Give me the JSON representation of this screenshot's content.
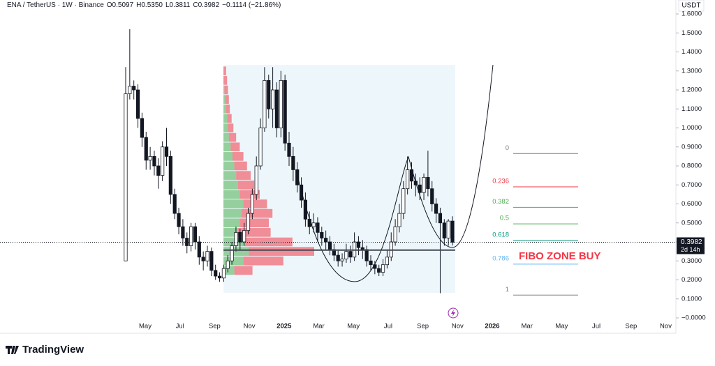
{
  "chart_data": {
    "type": "candlestick",
    "header": "ENA / TetherUS · 1W · Binance",
    "ohlc_text": [
      "O0.5097",
      "H0.5350",
      "L0.3811",
      "C0.3982",
      "−0.1114 (−21.86%)"
    ],
    "currency": "USDT",
    "last_price_label": "0.3982",
    "countdown": "2d 14h",
    "last_price": 0.3982,
    "open": [
      0.3,
      1.18,
      1.22,
      1.2,
      1.05,
      0.95,
      0.83,
      0.85,
      0.8,
      0.75,
      0.9,
      0.85,
      0.65,
      0.55,
      0.48,
      0.42,
      0.38,
      0.48,
      0.4,
      0.32,
      0.3,
      0.35,
      0.25,
      0.22,
      0.21,
      0.26,
      0.3,
      0.38,
      0.45,
      0.4,
      0.46,
      0.55,
      0.65,
      0.8,
      1.0,
      1.25,
      1.1,
      1.2,
      1.0,
      1.25,
      0.92,
      0.85,
      0.78,
      0.7,
      0.62,
      0.52,
      0.48,
      0.5,
      0.45,
      0.42,
      0.4,
      0.36,
      0.33,
      0.3,
      0.31,
      0.35,
      0.32,
      0.4,
      0.37,
      0.36,
      0.3,
      0.28,
      0.26,
      0.24,
      0.28,
      0.32,
      0.4,
      0.48,
      0.55,
      0.68,
      0.78,
      0.72,
      0.7,
      0.66,
      0.74,
      0.68,
      0.6,
      0.55,
      0.5,
      0.42,
      0.5097
    ],
    "high": [
      1.32,
      1.52,
      1.25,
      1.23,
      1.08,
      0.98,
      0.9,
      0.88,
      0.84,
      0.93,
      1.0,
      0.88,
      0.68,
      0.58,
      0.52,
      0.45,
      0.5,
      0.5,
      0.43,
      0.35,
      0.38,
      0.37,
      0.28,
      0.24,
      0.28,
      0.33,
      0.4,
      0.48,
      0.47,
      0.5,
      0.58,
      0.68,
      0.85,
      1.05,
      1.32,
      1.28,
      1.32,
      1.24,
      1.3,
      1.28,
      0.98,
      0.9,
      0.82,
      0.74,
      0.66,
      0.56,
      0.55,
      0.53,
      0.48,
      0.46,
      0.43,
      0.39,
      0.36,
      0.34,
      0.39,
      0.38,
      0.45,
      0.43,
      0.41,
      0.38,
      0.33,
      0.3,
      0.28,
      0.31,
      0.36,
      0.45,
      0.52,
      0.6,
      0.72,
      0.85,
      0.82,
      0.76,
      0.74,
      0.76,
      0.88,
      0.72,
      0.63,
      0.58,
      0.52,
      0.52,
      0.535
    ],
    "low": [
      0.3,
      1.15,
      1.15,
      1.0,
      0.9,
      0.78,
      0.78,
      0.75,
      0.68,
      0.72,
      0.8,
      0.6,
      0.52,
      0.44,
      0.38,
      0.34,
      0.35,
      0.36,
      0.28,
      0.25,
      0.27,
      0.22,
      0.2,
      0.19,
      0.19,
      0.24,
      0.28,
      0.35,
      0.36,
      0.38,
      0.44,
      0.52,
      0.62,
      0.78,
      0.98,
      1.05,
      1.0,
      0.95,
      0.95,
      0.88,
      0.8,
      0.72,
      0.66,
      0.58,
      0.48,
      0.44,
      0.45,
      0.4,
      0.38,
      0.36,
      0.33,
      0.3,
      0.27,
      0.27,
      0.29,
      0.29,
      0.3,
      0.33,
      0.31,
      0.27,
      0.25,
      0.23,
      0.22,
      0.22,
      0.26,
      0.3,
      0.38,
      0.45,
      0.52,
      0.65,
      0.68,
      0.64,
      0.62,
      0.62,
      0.64,
      0.56,
      0.5,
      0.13,
      0.38,
      0.38,
      0.3811
    ],
    "close": [
      1.18,
      1.22,
      1.2,
      1.05,
      0.95,
      0.83,
      0.85,
      0.8,
      0.75,
      0.9,
      0.85,
      0.65,
      0.55,
      0.48,
      0.42,
      0.38,
      0.48,
      0.4,
      0.32,
      0.3,
      0.35,
      0.25,
      0.22,
      0.21,
      0.26,
      0.3,
      0.38,
      0.45,
      0.4,
      0.46,
      0.55,
      0.65,
      0.8,
      1.0,
      1.25,
      1.1,
      1.2,
      1.0,
      1.25,
      0.92,
      0.85,
      0.78,
      0.7,
      0.62,
      0.52,
      0.48,
      0.5,
      0.45,
      0.42,
      0.4,
      0.36,
      0.33,
      0.3,
      0.31,
      0.35,
      0.32,
      0.4,
      0.37,
      0.36,
      0.3,
      0.28,
      0.26,
      0.24,
      0.28,
      0.32,
      0.4,
      0.48,
      0.55,
      0.68,
      0.78,
      0.72,
      0.7,
      0.66,
      0.74,
      0.68,
      0.6,
      0.55,
      0.5,
      0.42,
      0.5097,
      0.3982
    ],
    "volume_profile": {
      "price": [
        1.3,
        1.25,
        1.2,
        1.15,
        1.1,
        1.05,
        1.0,
        0.95,
        0.9,
        0.85,
        0.8,
        0.75,
        0.7,
        0.65,
        0.6,
        0.55,
        0.5,
        0.45,
        0.4,
        0.35,
        0.3,
        0.25
      ],
      "up": [
        0,
        0,
        1,
        2,
        3,
        4,
        5,
        6,
        8,
        10,
        12,
        14,
        16,
        18,
        22,
        20,
        18,
        16,
        24,
        28,
        22,
        12
      ],
      "down": [
        3,
        4,
        4,
        4,
        4,
        5,
        6,
        8,
        10,
        12,
        14,
        16,
        18,
        22,
        26,
        34,
        32,
        36,
        52,
        72,
        44,
        20
      ]
    },
    "support": 0.357,
    "fib_levels": [
      {
        "label": "0",
        "price": 0.865,
        "color": "#787b86"
      },
      {
        "label": "0.236",
        "price": 0.69,
        "color": "#f23645"
      },
      {
        "label": "0.382",
        "price": 0.582,
        "color": "#4caf50"
      },
      {
        "label": "0.5",
        "price": 0.495,
        "color": "#4caf50"
      },
      {
        "label": "0.618",
        "price": 0.408,
        "color": "#089981"
      },
      {
        "label": "0.786",
        "price": 0.283,
        "color": "#64b5f6"
      },
      {
        "label": "1",
        "price": 0.12,
        "color": "#787b86"
      }
    ],
    "annotation": "FIBO ZONE BUY",
    "ylim": [
      0,
      1.6
    ],
    "yticks": [
      {
        "value": 0,
        "label": "−0.0000"
      },
      {
        "value": 0.1,
        "label": "0.1000"
      },
      {
        "value": 0.2,
        "label": "0.2000"
      },
      {
        "value": 0.3,
        "label": "0.3000"
      },
      {
        "value": 0.4,
        "label": "0.4000"
      },
      {
        "value": 0.5,
        "label": "0.5000"
      },
      {
        "value": 0.6,
        "label": "0.6000"
      },
      {
        "value": 0.7,
        "label": "0.7000"
      },
      {
        "value": 0.8,
        "label": "0.8000"
      },
      {
        "value": 0.9,
        "label": "0.9000"
      },
      {
        "value": 1.0,
        "label": "1.0000"
      },
      {
        "value": 1.1,
        "label": "1.1000"
      },
      {
        "value": 1.2,
        "label": "1.2000"
      },
      {
        "value": 1.3,
        "label": "1.3000"
      },
      {
        "value": 1.4,
        "label": "1.4000"
      },
      {
        "value": 1.5,
        "label": "1.5000"
      },
      {
        "value": 1.6,
        "label": "1.6000"
      }
    ],
    "x_labels": [
      "May",
      "Jul",
      "Sep",
      "Nov",
      "2025",
      "Mar",
      "May",
      "Jul",
      "Sep",
      "Nov",
      "2026",
      "Mar",
      "May",
      "Jul",
      "Sep",
      "Nov"
    ],
    "brand": "TradingView"
  }
}
